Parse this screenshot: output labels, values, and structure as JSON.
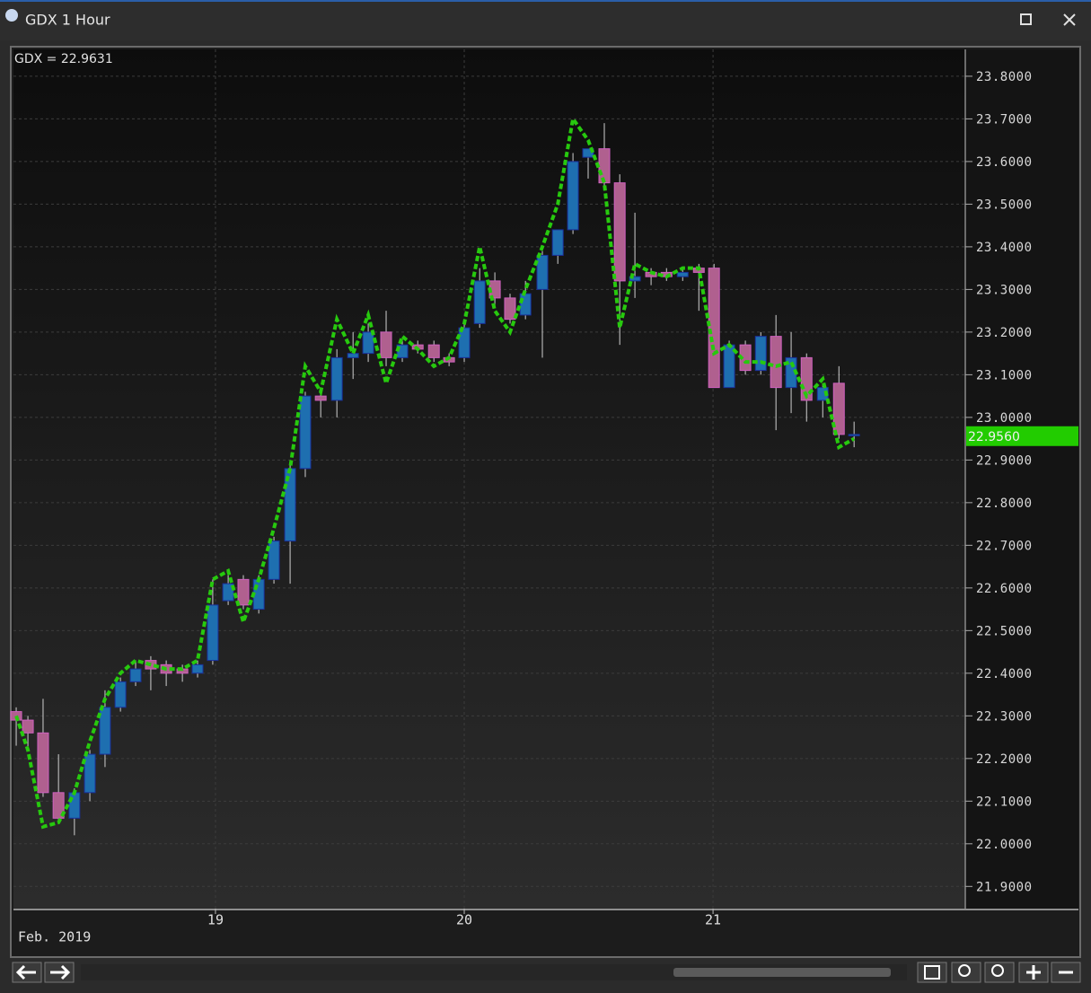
{
  "window": {
    "title": "GDX 1 Hour"
  },
  "chart_data": {
    "type": "candlestick",
    "legend_label": "GDX = 22.9631",
    "x_caption": "Feb. 2019",
    "up_color": "#1e6fb0",
    "down_color": "#b0608f",
    "grid": true,
    "x": [
      18.199,
      18.246,
      18.307,
      18.369,
      18.433,
      18.495,
      18.556,
      18.618,
      18.679,
      18.74,
      18.802,
      18.867,
      18.928,
      18.989,
      19.051,
      19.112,
      19.174,
      19.235,
      19.3,
      19.361,
      19.423,
      19.488,
      19.553,
      19.614,
      19.686,
      19.751,
      19.813,
      19.878,
      19.939,
      20.0,
      20.062,
      20.123,
      20.184,
      20.246,
      20.314,
      20.376,
      20.437,
      20.498,
      20.563,
      20.625,
      20.686,
      20.751,
      20.813,
      20.878,
      20.943,
      21.004,
      21.065,
      21.13,
      21.192,
      21.253,
      21.314,
      21.376,
      21.441,
      21.506,
      21.567
    ],
    "open": [
      22.31,
      22.29,
      22.26,
      22.12,
      22.06,
      22.12,
      22.21,
      22.32,
      22.38,
      22.43,
      22.42,
      22.41,
      22.4,
      22.43,
      22.57,
      22.62,
      22.55,
      22.62,
      22.71,
      22.88,
      23.05,
      23.04,
      23.14,
      23.15,
      23.2,
      23.14,
      23.17,
      23.17,
      23.14,
      23.14,
      23.22,
      23.32,
      23.28,
      23.24,
      23.3,
      23.38,
      23.44,
      23.61,
      23.63,
      23.55,
      23.32,
      23.34,
      23.34,
      23.33,
      23.35,
      23.35,
      23.07,
      23.17,
      23.11,
      23.19,
      23.07,
      23.14,
      23.04,
      23.08,
      22.96
    ],
    "high": [
      22.32,
      22.3,
      22.34,
      22.21,
      22.13,
      22.22,
      22.36,
      22.39,
      22.43,
      22.44,
      22.43,
      22.42,
      22.43,
      22.62,
      22.63,
      22.63,
      22.63,
      22.72,
      22.89,
      23.06,
      23.07,
      23.16,
      23.2,
      23.22,
      23.25,
      23.18,
      23.18,
      23.18,
      23.15,
      23.22,
      23.35,
      23.34,
      23.29,
      23.32,
      23.39,
      23.44,
      23.62,
      23.63,
      23.69,
      23.57,
      23.48,
      23.35,
      23.35,
      23.35,
      23.36,
      23.36,
      23.18,
      23.18,
      23.2,
      23.24,
      23.2,
      23.15,
      23.08,
      23.12,
      22.99
    ],
    "low": [
      22.23,
      22.22,
      22.11,
      22.05,
      22.02,
      22.1,
      22.18,
      22.31,
      22.37,
      22.36,
      22.37,
      22.38,
      22.39,
      22.42,
      22.56,
      22.55,
      22.54,
      22.61,
      22.61,
      22.86,
      23.0,
      23.0,
      23.09,
      23.13,
      23.12,
      23.13,
      23.15,
      23.13,
      23.12,
      23.13,
      23.21,
      23.26,
      23.22,
      23.23,
      23.14,
      23.36,
      23.43,
      23.56,
      23.54,
      23.17,
      23.28,
      23.31,
      23.32,
      23.32,
      23.25,
      23.07,
      23.07,
      23.1,
      23.1,
      22.97,
      23.01,
      22.99,
      23.0,
      22.95,
      22.93
    ],
    "close": [
      22.29,
      22.26,
      22.12,
      22.06,
      22.12,
      22.21,
      22.32,
      22.38,
      22.41,
      22.41,
      22.4,
      22.4,
      22.42,
      22.56,
      22.61,
      22.56,
      22.62,
      22.71,
      22.88,
      23.05,
      23.04,
      23.14,
      23.15,
      23.2,
      23.14,
      23.17,
      23.16,
      23.14,
      23.13,
      23.21,
      23.32,
      23.28,
      23.23,
      23.29,
      23.38,
      23.44,
      23.6,
      23.63,
      23.55,
      23.32,
      23.33,
      23.33,
      23.33,
      23.34,
      23.34,
      23.07,
      23.17,
      23.11,
      23.19,
      23.07,
      23.14,
      23.04,
      23.07,
      22.96,
      22.96
    ],
    "line": {
      "color": "#27c90e",
      "values": [
        22.3,
        22.22,
        22.04,
        22.05,
        22.12,
        22.24,
        22.34,
        22.4,
        22.43,
        22.42,
        22.41,
        22.41,
        22.43,
        22.62,
        22.64,
        22.52,
        22.62,
        22.74,
        22.88,
        23.12,
        23.06,
        23.23,
        23.15,
        23.24,
        23.08,
        23.19,
        23.16,
        23.12,
        23.14,
        23.22,
        23.4,
        23.25,
        23.2,
        23.3,
        23.4,
        23.5,
        23.7,
        23.65,
        23.55,
        23.21,
        23.36,
        23.34,
        23.33,
        23.35,
        23.35,
        23.15,
        23.17,
        23.13,
        23.13,
        23.12,
        23.13,
        23.05,
        23.09,
        22.93,
        22.95
      ]
    },
    "last_price": {
      "value": 22.956,
      "label": "22.9560",
      "color": "#22cc00"
    },
    "xlim": [
      18.188,
      22.014
    ],
    "xticks": [
      19,
      20,
      21
    ],
    "ylim": [
      21.848,
      23.863
    ],
    "yticks": [
      {
        "value": 23.8,
        "label": "23.8000"
      },
      {
        "value": 23.7,
        "label": "23.7000"
      },
      {
        "value": 23.6,
        "label": "23.6000"
      },
      {
        "value": 23.5,
        "label": "23.5000"
      },
      {
        "value": 23.4,
        "label": "23.4000"
      },
      {
        "value": 23.3,
        "label": "23.3000"
      },
      {
        "value": 23.2,
        "label": "23.2000"
      },
      {
        "value": 23.1,
        "label": "23.1000"
      },
      {
        "value": 23.0,
        "label": "23.0000"
      },
      {
        "value": 22.9,
        "label": "22.9000"
      },
      {
        "value": 22.8,
        "label": "22.8000"
      },
      {
        "value": 22.7,
        "label": "22.7000"
      },
      {
        "value": 22.6,
        "label": "22.6000"
      },
      {
        "value": 22.5,
        "label": "22.5000"
      },
      {
        "value": 22.4,
        "label": "22.4000"
      },
      {
        "value": 22.3,
        "label": "22.3000"
      },
      {
        "value": 22.2,
        "label": "22.2000"
      },
      {
        "value": 22.1,
        "label": "22.1000"
      },
      {
        "value": 22.0,
        "label": "22.0000"
      },
      {
        "value": 21.9,
        "label": "21.9000"
      }
    ]
  }
}
